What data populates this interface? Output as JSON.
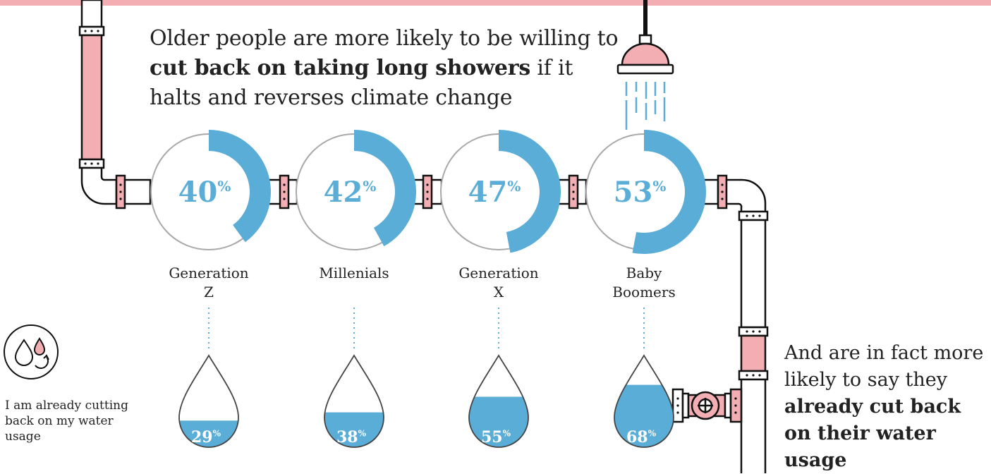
{
  "headline": {
    "part1": "Older people are more likely to be willing to ",
    "bold": "cut back on taking long showers",
    "part2": " if it halts and reverses climate change"
  },
  "side_note": {
    "part1": "And are in fact more likely to say they ",
    "bold": "already cut back on their water usage"
  },
  "legend": {
    "icon": "water-drops-recycle-icon",
    "text": "I am already cutting back on my water usage"
  },
  "colors": {
    "accent_blue": "#5aadd6",
    "pipe_pink": "#f2aeb3",
    "ring_gray": "#a8a8a8",
    "text": "#222222"
  },
  "chart_data": {
    "type": "donut",
    "percent_suffix": "%",
    "categories": [
      {
        "lines": [
          "Generation",
          "Z"
        ]
      },
      {
        "lines": [
          "Millenials"
        ]
      },
      {
        "lines": [
          "Generation",
          "X"
        ]
      },
      {
        "lines": [
          "Baby",
          "Boomers"
        ]
      }
    ],
    "series": [
      {
        "values": [
          40,
          42,
          47,
          53
        ]
      },
      {
        "values": [
          29,
          38,
          55,
          68
        ]
      }
    ]
  }
}
